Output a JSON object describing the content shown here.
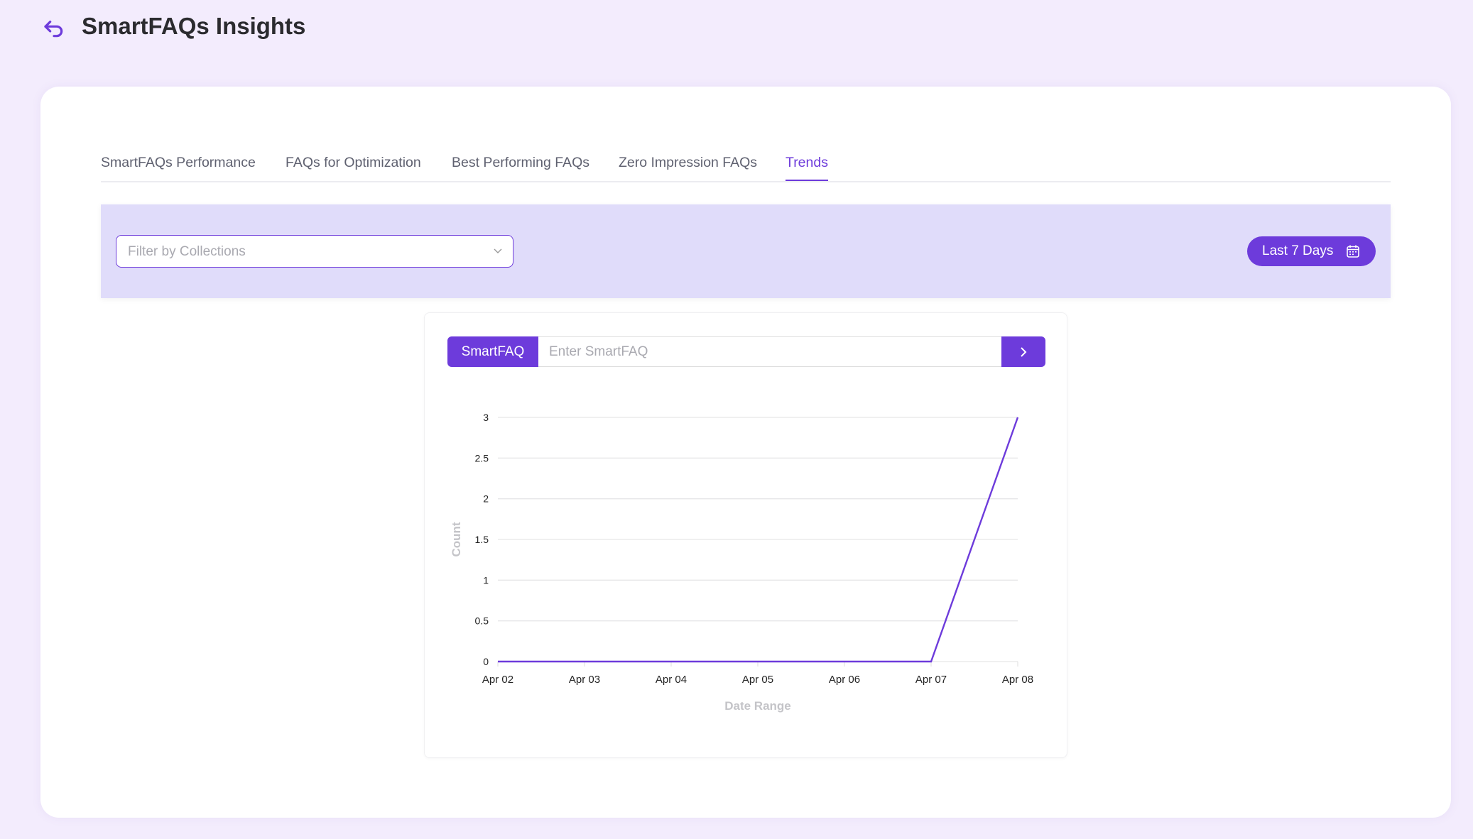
{
  "header": {
    "title": "SmartFAQs Insights"
  },
  "tabs": [
    {
      "label": "SmartFAQs Performance"
    },
    {
      "label": "FAQs for Optimization"
    },
    {
      "label": "Best Performing FAQs"
    },
    {
      "label": "Zero Impression FAQs"
    },
    {
      "label": "Trends"
    }
  ],
  "active_tab": "Trends",
  "filter": {
    "placeholder": "Filter by Collections",
    "date_range": "Last 7 Days"
  },
  "search": {
    "label": "SmartFAQ",
    "placeholder": "Enter SmartFAQ",
    "value": ""
  },
  "colors": {
    "accent": "#6d3bdb",
    "filter_bg": "#e0dcfa",
    "page_bg": "#f3ecfd"
  },
  "chart_data": {
    "type": "line",
    "categories": [
      "Apr 02",
      "Apr 03",
      "Apr 04",
      "Apr 05",
      "Apr 06",
      "Apr 07",
      "Apr 08"
    ],
    "values": [
      0,
      0,
      0,
      0,
      0,
      0,
      3
    ],
    "yticks": [
      "0",
      "0.5",
      "1",
      "1.5",
      "2",
      "2.5",
      "3"
    ],
    "ylim": [
      0,
      3
    ],
    "xlabel": "Date Range",
    "ylabel": "Count",
    "grid": true
  }
}
